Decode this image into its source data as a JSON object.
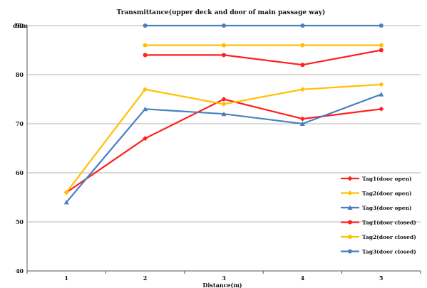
{
  "chart_data": {
    "type": "line",
    "title": "Transmittance(upper  deck and door of main passage way)",
    "xlabel": "Distance(m)",
    "ylabel": "dBm",
    "x": [
      1,
      2,
      3,
      4,
      5
    ],
    "xticks": [
      "1",
      "2",
      "3",
      "4",
      "5"
    ],
    "ylim": [
      40,
      90
    ],
    "yticks": [
      40,
      50,
      60,
      70,
      80,
      90
    ],
    "grid": true,
    "legend_position": "right",
    "series": [
      {
        "name": "Tag1(door open)",
        "color": "#ff2020",
        "marker": "diamond",
        "values": [
          56,
          67,
          75,
          71,
          73
        ]
      },
      {
        "name": "Tag2(door open)",
        "color": "#ffc000",
        "marker": "diamond",
        "values": [
          56,
          77,
          74,
          77,
          78
        ]
      },
      {
        "name": "Tag3(door open)",
        "color": "#4a7fc1",
        "marker": "triangle",
        "values": [
          54,
          73,
          72,
          70,
          76
        ]
      },
      {
        "name": "Tag1(door closed)",
        "color": "#ff2020",
        "marker": "circle",
        "values": [
          null,
          84,
          84,
          82,
          85
        ]
      },
      {
        "name": "Tag2(door closed)",
        "color": "#ffc000",
        "marker": "circle",
        "values": [
          null,
          86,
          86,
          86,
          86
        ]
      },
      {
        "name": "Tag3(door closed)",
        "color": "#4a7fc1",
        "marker": "circle",
        "values": [
          null,
          90,
          90,
          90,
          90
        ]
      }
    ]
  }
}
